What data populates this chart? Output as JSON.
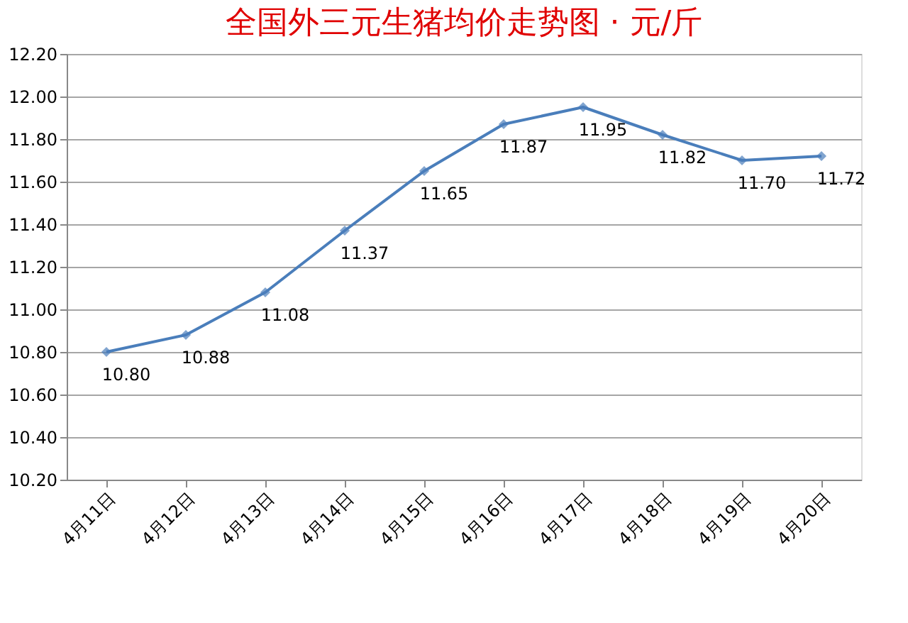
{
  "chart_data": {
    "type": "line",
    "title": "全国外三元生猪均价走势图 · 元/斤",
    "categories": [
      "4月11日",
      "4月12日",
      "4月13日",
      "4月14日",
      "4月15日",
      "4月16日",
      "4月17日",
      "4月18日",
      "4月19日",
      "4月20日"
    ],
    "series": [
      {
        "color": "#4a7ebb",
        "values": [
          10.8,
          10.88,
          11.08,
          11.37,
          11.65,
          11.87,
          11.95,
          11.82,
          11.7,
          11.72
        ],
        "value_labels": [
          "10.80",
          "10.88",
          "11.08",
          "11.37",
          "11.65",
          "11.87",
          "11.95",
          "11.82",
          "11.70",
          "11.72"
        ]
      }
    ],
    "ylim": [
      10.2,
      12.2
    ],
    "yticks": [
      {
        "value": 10.2,
        "label": "10.20"
      },
      {
        "value": 10.4,
        "label": "10.40"
      },
      {
        "value": 10.6,
        "label": "10.60"
      },
      {
        "value": 10.8,
        "label": "10.80"
      },
      {
        "value": 11.0,
        "label": "11.00"
      },
      {
        "value": 11.2,
        "label": "11.20"
      },
      {
        "value": 11.4,
        "label": "11.40"
      },
      {
        "value": 11.6,
        "label": "11.60"
      },
      {
        "value": 11.8,
        "label": "11.80"
      },
      {
        "value": 12.0,
        "label": "12.00"
      },
      {
        "value": 12.2,
        "label": "12.20"
      }
    ],
    "grid": "y",
    "marker": "diamond",
    "line_style": "solid"
  }
}
